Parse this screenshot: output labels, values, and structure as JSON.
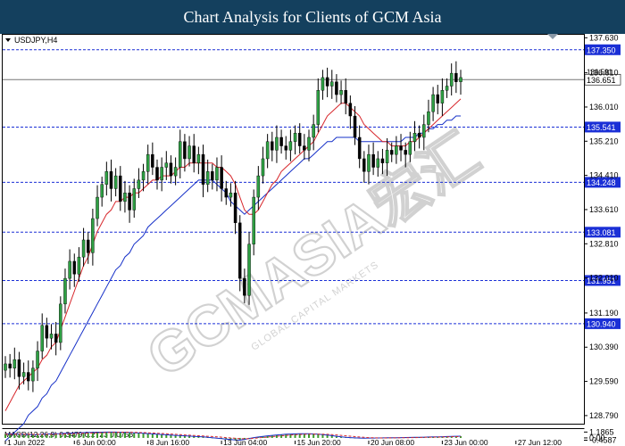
{
  "banner": {
    "title": "Chart Analysis for Clients of GCM Asia"
  },
  "watermark": {
    "brand": "GCMASIA宏汇",
    "tagline": "GLOBAL CAPITAL MARKETS"
  },
  "chart_data": [
    {
      "type": "candlestick",
      "symbol_label": "USDJPY,H4",
      "ylim": [
        128.6,
        137.7
      ],
      "y_ticks": [
        137.63,
        136.81,
        136.01,
        135.21,
        134.41,
        133.61,
        132.81,
        132.01,
        131.19,
        130.39,
        129.59,
        128.79
      ],
      "y_tick_labels": [
        "137.630",
        "136.810",
        "136.010",
        "135.210",
        "134.410",
        "133.610",
        "132.810",
        "132.010",
        "131.190",
        "130.390",
        "129.590",
        "128.790"
      ],
      "levels": [
        {
          "value": 137.35,
          "label": "137.350"
        },
        {
          "value": 135.541,
          "label": "135.541"
        },
        {
          "value": 134.248,
          "label": "134.248"
        },
        {
          "value": 133.081,
          "label": "133.081"
        },
        {
          "value": 131.951,
          "label": "131.951"
        },
        {
          "value": 130.94,
          "label": "130.940"
        }
      ],
      "current_price": {
        "value": 136.651,
        "label": "136.651",
        "label_second": "136.591"
      },
      "x_tick_labels": [
        "1 Jun 2022",
        "6 Jun 00:00",
        "8 Jun 16:00",
        "13 Jun 04:00",
        "15 Jun 20:00",
        "20 Jun 08:00",
        "23 Jun 00:00",
        "27 Jun 12:00"
      ],
      "x_tick_bar_index": [
        0,
        15,
        31,
        47,
        63,
        79,
        95,
        111
      ],
      "closes": [
        130.0,
        129.9,
        130.1,
        129.7,
        129.8,
        129.6,
        129.9,
        130.3,
        130.9,
        130.6,
        130.7,
        130.5,
        131.4,
        132.0,
        132.4,
        132.1,
        132.5,
        132.9,
        132.6,
        133.4,
        133.9,
        134.2,
        134.5,
        134.1,
        134.4,
        133.8,
        134.0,
        133.6,
        134.1,
        134.3,
        134.5,
        134.9,
        134.6,
        134.3,
        134.6,
        134.7,
        134.4,
        134.6,
        135.2,
        134.8,
        135.1,
        134.7,
        134.9,
        134.2,
        134.5,
        134.3,
        134.6,
        134.1,
        133.9,
        134.0,
        133.3,
        132.0,
        131.6,
        132.8,
        133.9,
        134.4,
        134.8,
        135.2,
        135.0,
        135.3,
        135.1,
        135.0,
        135.2,
        135.4,
        135.1,
        135.0,
        135.3,
        135.6,
        136.4,
        136.7,
        136.5,
        136.6,
        136.3,
        136.4,
        136.1,
        135.8,
        135.3,
        134.8,
        134.5,
        134.9,
        134.6,
        134.8,
        134.7,
        135.0,
        134.9,
        135.1,
        135.0,
        134.9,
        135.2,
        135.4,
        135.3,
        135.6,
        135.9,
        136.3,
        136.1,
        136.4,
        136.5,
        136.8,
        136.6,
        136.7
      ],
      "ma_fast": [
        128.9,
        129.1,
        129.3,
        129.5,
        129.6,
        129.7,
        129.8,
        129.9,
        130.1,
        130.2,
        130.4,
        130.5,
        130.8,
        131.1,
        131.4,
        131.7,
        132.0,
        132.3,
        132.5,
        132.8,
        133.1,
        133.3,
        133.5,
        133.6,
        133.8,
        133.8,
        133.9,
        133.9,
        134.0,
        134.0,
        134.1,
        134.2,
        134.3,
        134.3,
        134.4,
        134.4,
        134.4,
        134.5,
        134.6,
        134.6,
        134.7,
        134.7,
        134.7,
        134.7,
        134.7,
        134.7,
        134.6,
        134.6,
        134.5,
        134.4,
        134.2,
        133.9,
        133.6,
        133.5,
        133.5,
        133.6,
        133.8,
        134.0,
        134.2,
        134.3,
        134.5,
        134.6,
        134.7,
        134.8,
        134.9,
        135.0,
        135.1,
        135.2,
        135.4,
        135.6,
        135.8,
        135.9,
        136.0,
        136.1,
        136.1,
        136.0,
        135.9,
        135.8,
        135.6,
        135.5,
        135.4,
        135.3,
        135.2,
        135.2,
        135.1,
        135.1,
        135.1,
        135.1,
        135.2,
        135.2,
        135.3,
        135.4,
        135.5,
        135.6,
        135.7,
        135.8,
        135.9,
        136.0,
        136.1,
        136.2
      ],
      "ma_slow": [
        128.2,
        128.3,
        128.4,
        128.5,
        128.6,
        128.8,
        128.9,
        129.0,
        129.2,
        129.3,
        129.5,
        129.6,
        129.8,
        130.0,
        130.2,
        130.4,
        130.6,
        130.8,
        131.0,
        131.2,
        131.4,
        131.6,
        131.8,
        132.0,
        132.2,
        132.3,
        132.5,
        132.6,
        132.8,
        132.9,
        133.0,
        133.2,
        133.3,
        133.4,
        133.5,
        133.6,
        133.7,
        133.8,
        133.9,
        134.0,
        134.1,
        134.2,
        134.3,
        134.3,
        134.3,
        134.3,
        134.2,
        134.1,
        134.0,
        133.8,
        133.7,
        133.6,
        133.5,
        133.6,
        133.7,
        133.8,
        133.9,
        134.0,
        134.1,
        134.2,
        134.3,
        134.4,
        134.5,
        134.6,
        134.7,
        134.8,
        134.8,
        134.9,
        135.0,
        135.1,
        135.2,
        135.2,
        135.3,
        135.3,
        135.3,
        135.3,
        135.3,
        135.2,
        135.2,
        135.2,
        135.2,
        135.2,
        135.2,
        135.2,
        135.2,
        135.2,
        135.2,
        135.3,
        135.3,
        135.3,
        135.4,
        135.4,
        135.5,
        135.5,
        135.6,
        135.6,
        135.7,
        135.7,
        135.8,
        135.8
      ]
    },
    {
      "type": "macd",
      "label": "MACD(12,26,9) 0.3479 0.2723 0.0756",
      "ylim": [
        -0.55,
        1.25
      ],
      "y_tick_labels": [
        "1.1865",
        "0.00",
        "-0.4587"
      ],
      "y_ticks": [
        1.1865,
        0.0,
        -0.4587
      ],
      "macd": [
        0.78,
        0.85,
        0.82,
        0.77,
        0.72,
        0.68,
        0.66,
        0.68,
        0.74,
        0.78,
        0.82,
        0.85,
        0.88,
        0.92,
        0.96,
        1.0,
        1.03,
        1.07,
        1.1,
        1.12,
        1.14,
        1.16,
        1.17,
        1.18,
        1.17,
        1.15,
        1.12,
        1.08,
        1.04,
        0.99,
        0.94,
        0.88,
        0.82,
        0.76,
        0.7,
        0.64,
        0.58,
        0.52,
        0.47,
        0.42,
        0.37,
        0.32,
        0.26,
        0.2,
        0.12,
        0.04,
        -0.05,
        -0.15,
        -0.25,
        -0.34,
        -0.42,
        -0.44,
        -0.3,
        -0.12,
        0.06,
        0.18,
        0.3,
        0.42,
        0.52,
        0.6,
        0.68,
        0.74,
        0.79,
        0.82,
        0.84,
        0.85,
        0.84,
        0.8,
        0.74,
        0.66,
        0.56,
        0.45,
        0.34,
        0.22,
        0.12,
        0.06,
        0.0,
        -0.03,
        -0.05,
        -0.03,
        -0.02,
        -0.01,
        0.0,
        0.02,
        0.04,
        0.05,
        0.07,
        0.08,
        0.1,
        0.12,
        0.14,
        0.16,
        0.18,
        0.2,
        0.22,
        0.25,
        0.28,
        0.31,
        0.33,
        0.35
      ],
      "signal": [
        0.72,
        0.73,
        0.74,
        0.74,
        0.74,
        0.73,
        0.72,
        0.71,
        0.71,
        0.72,
        0.73,
        0.75,
        0.77,
        0.8,
        0.83,
        0.86,
        0.9,
        0.93,
        0.97,
        1.0,
        1.03,
        1.06,
        1.09,
        1.11,
        1.13,
        1.14,
        1.14,
        1.13,
        1.12,
        1.1,
        1.07,
        1.03,
        0.99,
        0.94,
        0.89,
        0.84,
        0.78,
        0.72,
        0.66,
        0.6,
        0.55,
        0.49,
        0.44,
        0.39,
        0.33,
        0.28,
        0.22,
        0.15,
        0.07,
        -0.01,
        -0.09,
        -0.16,
        -0.18,
        -0.14,
        -0.08,
        0.0,
        0.08,
        0.17,
        0.26,
        0.35,
        0.43,
        0.51,
        0.58,
        0.64,
        0.69,
        0.73,
        0.76,
        0.77,
        0.77,
        0.75,
        0.72,
        0.67,
        0.6,
        0.52,
        0.43,
        0.35,
        0.26,
        0.18,
        0.11,
        0.06,
        0.02,
        0.0,
        -0.01,
        -0.01,
        0.0,
        0.01,
        0.02,
        0.04,
        0.05,
        0.07,
        0.09,
        0.11,
        0.13,
        0.15,
        0.17,
        0.19,
        0.21,
        0.24,
        0.26,
        0.27
      ]
    }
  ]
}
